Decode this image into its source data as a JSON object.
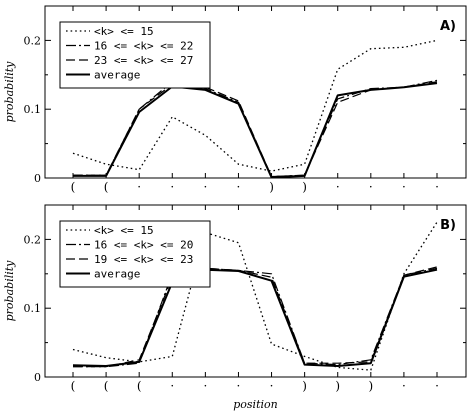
{
  "chart_data": [
    {
      "type": "line",
      "panel_label": "A)",
      "ylabel": "probability",
      "xlabel": "",
      "ylim": [
        0,
        0.25
      ],
      "yticks": [
        0,
        0.1,
        0.2
      ],
      "ytick_labels": [
        "0",
        "0.1",
        "0.2"
      ],
      "x_tick_labels": [
        "(",
        "(",
        "·",
        "·",
        "·",
        "·",
        ")",
        ")",
        "·",
        "·",
        "·",
        "·"
      ],
      "legend_position": "top-left",
      "series": [
        {
          "name": "<k>  <=  15",
          "style": "dotted",
          "values": [
            0.036,
            0.02,
            0.012,
            0.089,
            0.062,
            0.02,
            0.01,
            0.02,
            0.158,
            0.188,
            0.19,
            0.2
          ]
        },
        {
          "name": "16  <=  <k>  <=  22",
          "style": "dashdot",
          "values": [
            0.004,
            0.004,
            0.1,
            0.14,
            0.13,
            0.11,
            0.002,
            0.004,
            0.115,
            0.13,
            0.132,
            0.142
          ]
        },
        {
          "name": "23  <=  <k>  <=  27",
          "style": "dashed",
          "values": [
            0.004,
            0.004,
            0.1,
            0.136,
            0.132,
            0.112,
            0.002,
            0.004,
            0.11,
            0.128,
            0.132,
            0.14
          ]
        },
        {
          "name": "average",
          "style": "solid",
          "values": [
            0.003,
            0.003,
            0.096,
            0.133,
            0.128,
            0.108,
            0.001,
            0.003,
            0.12,
            0.128,
            0.132,
            0.138
          ]
        }
      ]
    },
    {
      "type": "line",
      "panel_label": "B)",
      "ylabel": "probability",
      "xlabel": "position",
      "ylim": [
        0,
        0.25
      ],
      "yticks": [
        0,
        0.1,
        0.2
      ],
      "ytick_labels": [
        "0",
        "0.1",
        "0.2"
      ],
      "x_tick_labels": [
        "(",
        "(",
        "(",
        "·",
        "·",
        "·",
        "·",
        ")",
        ")",
        ")",
        "·",
        "·"
      ],
      "legend_position": "top-left",
      "series": [
        {
          "name": "<k>  <=  15",
          "style": "dotted",
          "values": [
            0.04,
            0.028,
            0.022,
            0.03,
            0.21,
            0.195,
            0.048,
            0.03,
            0.014,
            0.01,
            0.15,
            0.225
          ]
        },
        {
          "name": "16  <=  <k>  <=  20",
          "style": "dashdot",
          "values": [
            0.015,
            0.015,
            0.02,
            0.15,
            0.158,
            0.155,
            0.15,
            0.02,
            0.018,
            0.025,
            0.148,
            0.158
          ]
        },
        {
          "name": "19  <=  <k>  <=  23",
          "style": "dashed",
          "values": [
            0.015,
            0.015,
            0.025,
            0.145,
            0.158,
            0.155,
            0.145,
            0.02,
            0.02,
            0.022,
            0.148,
            0.16
          ]
        },
        {
          "name": "average",
          "style": "solid",
          "values": [
            0.017,
            0.016,
            0.022,
            0.138,
            0.156,
            0.154,
            0.14,
            0.018,
            0.016,
            0.02,
            0.146,
            0.156
          ]
        }
      ]
    }
  ]
}
